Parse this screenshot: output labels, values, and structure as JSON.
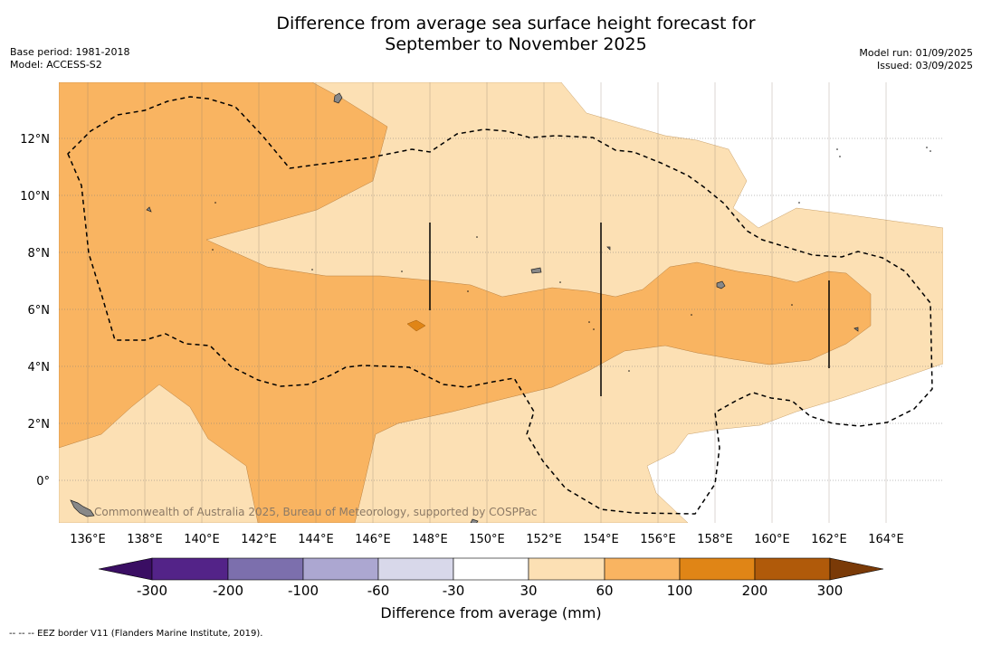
{
  "title": {
    "line1": "Difference from average sea surface height forecast for",
    "line2": "September to November 2025"
  },
  "meta_left": {
    "base_period": "Base period: 1981-2018",
    "model": "Model: ACCESS-S2"
  },
  "meta_right": {
    "model_run": "Model run: 01/09/2025",
    "issued": "Issued: 03/09/2025"
  },
  "map": {
    "x_ticks": [
      "136°E",
      "138°E",
      "140°E",
      "142°E",
      "144°E",
      "146°E",
      "148°E",
      "150°E",
      "152°E",
      "154°E",
      "156°E",
      "158°E",
      "160°E",
      "162°E",
      "164°E"
    ],
    "y_ticks": [
      "12°N",
      "10°N",
      "8°N",
      "6°N",
      "4°N",
      "2°N",
      "0°"
    ],
    "watermark": "Commonwealth of Australia 2025, Bureau of Meteorology, supported by COSPPac",
    "fill_colors": {
      "band_30_60": "#fce0b4",
      "band_60_100": "#f9b461",
      "band_100_200": "#e08516"
    },
    "grid": true
  },
  "colorbar": {
    "labels": [
      "-300",
      "-200",
      "-100",
      "-60",
      "-30",
      "30",
      "60",
      "100",
      "200",
      "300"
    ],
    "colors": [
      "#3a0e63",
      "#532388",
      "#7c6fad",
      "#aca7d1",
      "#d8d8ea",
      "#ffffff",
      "#fce0b4",
      "#f9b461",
      "#e08516",
      "#b05a0a",
      "#7a3a07"
    ],
    "title": "Difference from average (mm)"
  },
  "footnote": "--  --  -- EEZ border V11 (Flanders Marine Institute, 2019)."
}
